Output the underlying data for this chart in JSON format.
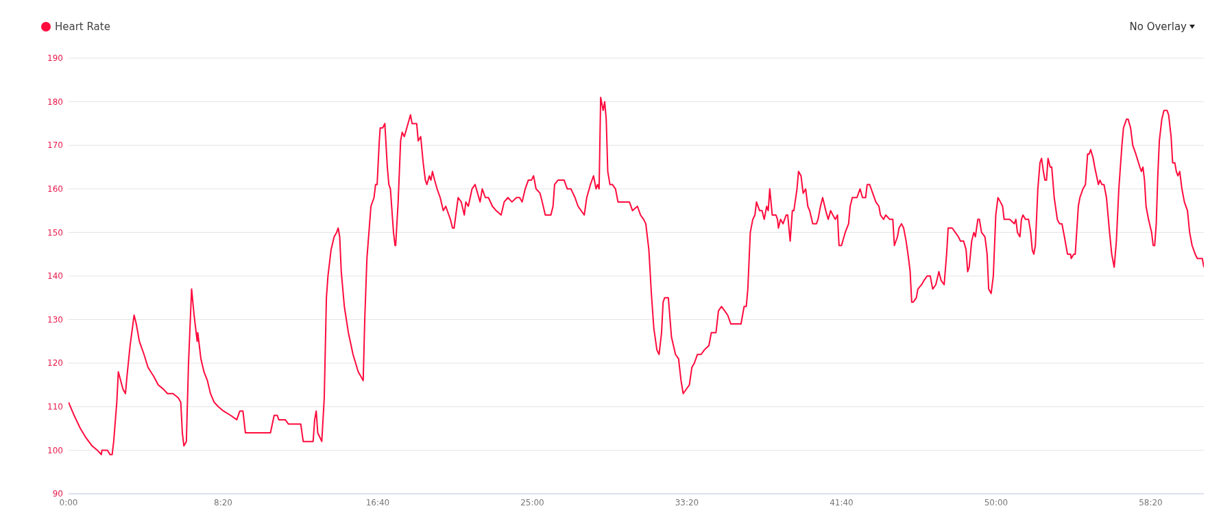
{
  "chart_data": {
    "type": "line",
    "legend": "top left",
    "grid": "y",
    "marker": "none",
    "line_style": "solid",
    "annotations": [
      "No Overlay"
    ],
    "xlim": [
      0,
      3672
    ],
    "ylim": [
      90,
      190
    ],
    "yticks": [
      90,
      100,
      110,
      120,
      130,
      140,
      150,
      160,
      170,
      180,
      190
    ],
    "xticks": [
      {
        "value": 0,
        "label": "0:00"
      },
      {
        "value": 500,
        "label": "8:20"
      },
      {
        "value": 1000,
        "label": "16:40"
      },
      {
        "value": 1500,
        "label": "25:00"
      },
      {
        "value": 2000,
        "label": "33:20"
      },
      {
        "value": 2500,
        "label": "41:40"
      },
      {
        "value": 3000,
        "label": "50:00"
      },
      {
        "value": 3500,
        "label": "58:20"
      }
    ],
    "series": [
      {
        "name": "Heart Rate",
        "color": "#ff0a3c",
        "x": [
          0,
          18,
          38,
          55,
          76,
          93,
          106,
          108,
          126,
          134,
          141,
          146,
          156,
          161,
          176,
          184,
          189,
          199,
          212,
          219,
          229,
          244,
          257,
          275,
          290,
          307,
          320,
          338,
          355,
          363,
          368,
          373,
          381,
          388,
          398,
          406,
          416,
          418,
          428,
          438,
          449,
          459,
          471,
          484,
          501,
          524,
          544,
          554,
          564,
          572,
          653,
          665,
          675,
          680,
          701,
          711,
          751,
          759,
          791,
          796,
          801,
          806,
          819,
          827,
          834,
          839,
          849,
          859,
          867,
          872,
          877,
          882,
          892,
          905,
          920,
          937,
          945,
          953,
          958,
          965,
          978,
          988,
          993,
          998,
          1005,
          1008,
          1016,
          1023,
          1031,
          1036,
          1041,
          1051,
          1056,
          1058,
          1066,
          1074,
          1079,
          1086,
          1094,
          1106,
          1111,
          1126,
          1131,
          1139,
          1147,
          1154,
          1159,
          1167,
          1172,
          1177,
          1184,
          1192,
          1202,
          1212,
          1220,
          1230,
          1235,
          1242,
          1247,
          1260,
          1270,
          1280,
          1285,
          1293,
          1305,
          1315,
          1323,
          1331,
          1338,
          1348,
          1358,
          1371,
          1383,
          1399,
          1409,
          1421,
          1434,
          1449,
          1459,
          1467,
          1477,
          1487,
          1497,
          1504,
          1512,
          1525,
          1532,
          1542,
          1560,
          1567,
          1572,
          1583,
          1593,
          1603,
          1613,
          1625,
          1638,
          1648,
          1658,
          1668,
          1676,
          1688,
          1698,
          1706,
          1711,
          1716,
          1721,
          1729,
          1734,
          1739,
          1744,
          1751,
          1759,
          1769,
          1777,
          1794,
          1814,
          1824,
          1840,
          1850,
          1860,
          1867,
          1877,
          1885,
          1893,
          1903,
          1910,
          1918,
          1923,
          1928,
          1940,
          1950,
          1963,
          1973,
          1981,
          1988,
          2008,
          2016,
          2024,
          2034,
          2046,
          2056,
          2071,
          2079,
          2094,
          2102,
          2112,
          2122,
          2132,
          2142,
          2175,
          2185,
          2192,
          2197,
          2205,
          2213,
          2220,
          2225,
          2235,
          2243,
          2250,
          2258,
          2263,
          2268,
          2276,
          2288,
          2293,
          2296,
          2303,
          2311,
          2321,
          2326,
          2334,
          2341,
          2346,
          2356,
          2361,
          2369,
          2376,
          2384,
          2391,
          2397,
          2407,
          2419,
          2424,
          2432,
          2439,
          2449,
          2457,
          2465,
          2472,
          2480,
          2487,
          2492,
          2500,
          2512,
          2523,
          2528,
          2535,
          2550,
          2560,
          2568,
          2578,
          2583,
          2591,
          2601,
          2611,
          2621,
          2626,
          2636,
          2643,
          2656,
          2666,
          2671,
          2681,
          2686,
          2694,
          2701,
          2709,
          2717,
          2722,
          2727,
          2732,
          2742,
          2747,
          2759,
          2767,
          2777,
          2787,
          2795,
          2805,
          2815,
          2822,
          2832,
          2840,
          2845,
          2858,
          2868,
          2878,
          2885,
          2895,
          2903,
          2908,
          2913,
          2921,
          2928,
          2933,
          2941,
          2946,
          2953,
          2964,
          2971,
          2976,
          2984,
          2991,
          2999,
          3006,
          3014,
          3021,
          3026,
          3044,
          3059,
          3064,
          3069,
          3077,
          3082,
          3087,
          3095,
          3105,
          3112,
          3117,
          3122,
          3127,
          3135,
          3142,
          3147,
          3153,
          3158,
          3163,
          3168,
          3175,
          3180,
          3188,
          3198,
          3205,
          3213,
          3221,
          3226,
          3231,
          3241,
          3243,
          3251,
          3256,
          3266,
          3271,
          3281,
          3289,
          3296,
          3301,
          3306,
          3314,
          3319,
          3331,
          3336,
          3342,
          3349,
          3357,
          3367,
          3374,
          3382,
          3389,
          3397,
          3407,
          3412,
          3417,
          3422,
          3427,
          3435,
          3442,
          3452,
          3465,
          3470,
          3475,
          3480,
          3485,
          3493,
          3503,
          3508,
          3513,
          3518,
          3523,
          3528,
          3536,
          3543,
          3553,
          3558,
          3566,
          3571,
          3578,
          3583,
          3588,
          3594,
          3601,
          3609,
          3619,
          3626,
          3634,
          3644,
          3651,
          3667,
          3672
        ],
        "values": [
          111,
          108,
          105,
          103,
          101,
          100,
          99,
          100,
          100,
          99,
          99,
          102,
          111,
          118,
          114,
          113,
          117,
          124,
          131,
          129,
          125,
          122,
          119,
          117,
          115,
          114,
          113,
          113,
          112,
          111,
          104,
          101,
          102,
          120,
          137,
          131,
          125,
          127,
          121,
          118,
          116,
          113,
          111,
          110,
          109,
          108,
          107,
          109,
          109,
          104,
          104,
          108,
          108,
          107,
          107,
          106,
          106,
          102,
          102,
          107,
          109,
          104,
          102,
          112,
          135,
          140,
          146,
          149,
          150,
          151,
          149,
          141,
          133,
          127,
          122,
          118,
          117,
          116,
          130,
          144,
          156,
          158,
          161,
          161,
          171,
          174,
          174,
          175,
          165,
          161,
          160,
          150,
          147,
          147,
          157,
          171,
          173,
          172,
          174,
          177,
          175,
          175,
          171,
          172,
          166,
          162,
          161,
          163,
          162,
          164,
          162,
          160,
          158,
          155,
          156,
          154,
          153,
          151,
          151,
          158,
          157,
          154,
          157,
          156,
          160,
          161,
          159,
          157,
          160,
          158,
          158,
          156,
          155,
          154,
          157,
          158,
          157,
          158,
          158,
          157,
          160,
          162,
          162,
          163,
          160,
          159,
          157,
          154,
          154,
          156,
          161,
          162,
          162,
          162,
          160,
          160,
          158,
          156,
          155,
          154,
          158,
          161,
          163,
          160,
          161,
          160,
          181,
          178,
          180,
          176,
          164,
          161,
          161,
          160,
          157,
          157,
          157,
          155,
          156,
          154,
          153,
          152,
          146,
          136,
          128,
          123,
          122,
          127,
          134,
          135,
          135,
          126,
          122,
          121,
          116,
          113,
          115,
          119,
          120,
          122,
          122,
          123,
          124,
          127,
          127,
          132,
          133,
          132,
          131,
          129,
          129,
          133,
          133,
          137,
          150,
          153,
          154,
          157,
          155,
          155,
          153,
          156,
          155,
          160,
          154,
          154,
          153,
          151,
          153,
          152,
          154,
          154,
          148,
          155,
          155,
          160,
          164,
          163,
          159,
          160,
          156,
          155,
          152,
          152,
          153,
          156,
          158,
          155,
          153,
          155,
          154,
          153,
          154,
          147,
          147,
          150,
          152,
          156,
          158,
          158,
          160,
          158,
          158,
          161,
          161,
          159,
          157,
          156,
          154,
          153,
          154,
          153,
          153,
          147,
          149,
          151,
          152,
          151,
          148,
          144,
          141,
          134,
          134,
          135,
          137,
          138,
          139,
          140,
          140,
          137,
          138,
          141,
          139,
          138,
          145,
          151,
          151,
          150,
          149,
          148,
          148,
          146,
          141,
          142,
          148,
          150,
          149,
          153,
          153,
          150,
          149,
          145,
          137,
          136,
          140,
          154,
          158,
          157,
          156,
          153,
          153,
          152,
          153,
          150,
          149,
          153,
          154,
          153,
          153,
          150,
          146,
          145,
          147,
          160,
          166,
          167,
          164,
          162,
          162,
          167,
          165,
          165,
          158,
          153,
          152,
          152,
          149,
          147,
          145,
          145,
          144,
          145,
          145,
          156,
          158,
          160,
          161,
          168,
          168,
          169,
          167,
          165,
          161,
          162,
          161,
          161,
          158,
          150,
          145,
          142,
          148,
          160,
          170,
          174,
          175,
          176,
          176,
          174,
          170,
          168,
          165,
          164,
          165,
          162,
          156,
          153,
          150,
          147,
          147,
          152,
          163,
          171,
          176,
          178,
          178,
          177,
          172,
          166,
          166,
          164,
          163,
          164,
          160,
          157,
          155,
          150,
          147,
          145,
          144,
          144,
          142
        ]
      }
    ]
  }
}
